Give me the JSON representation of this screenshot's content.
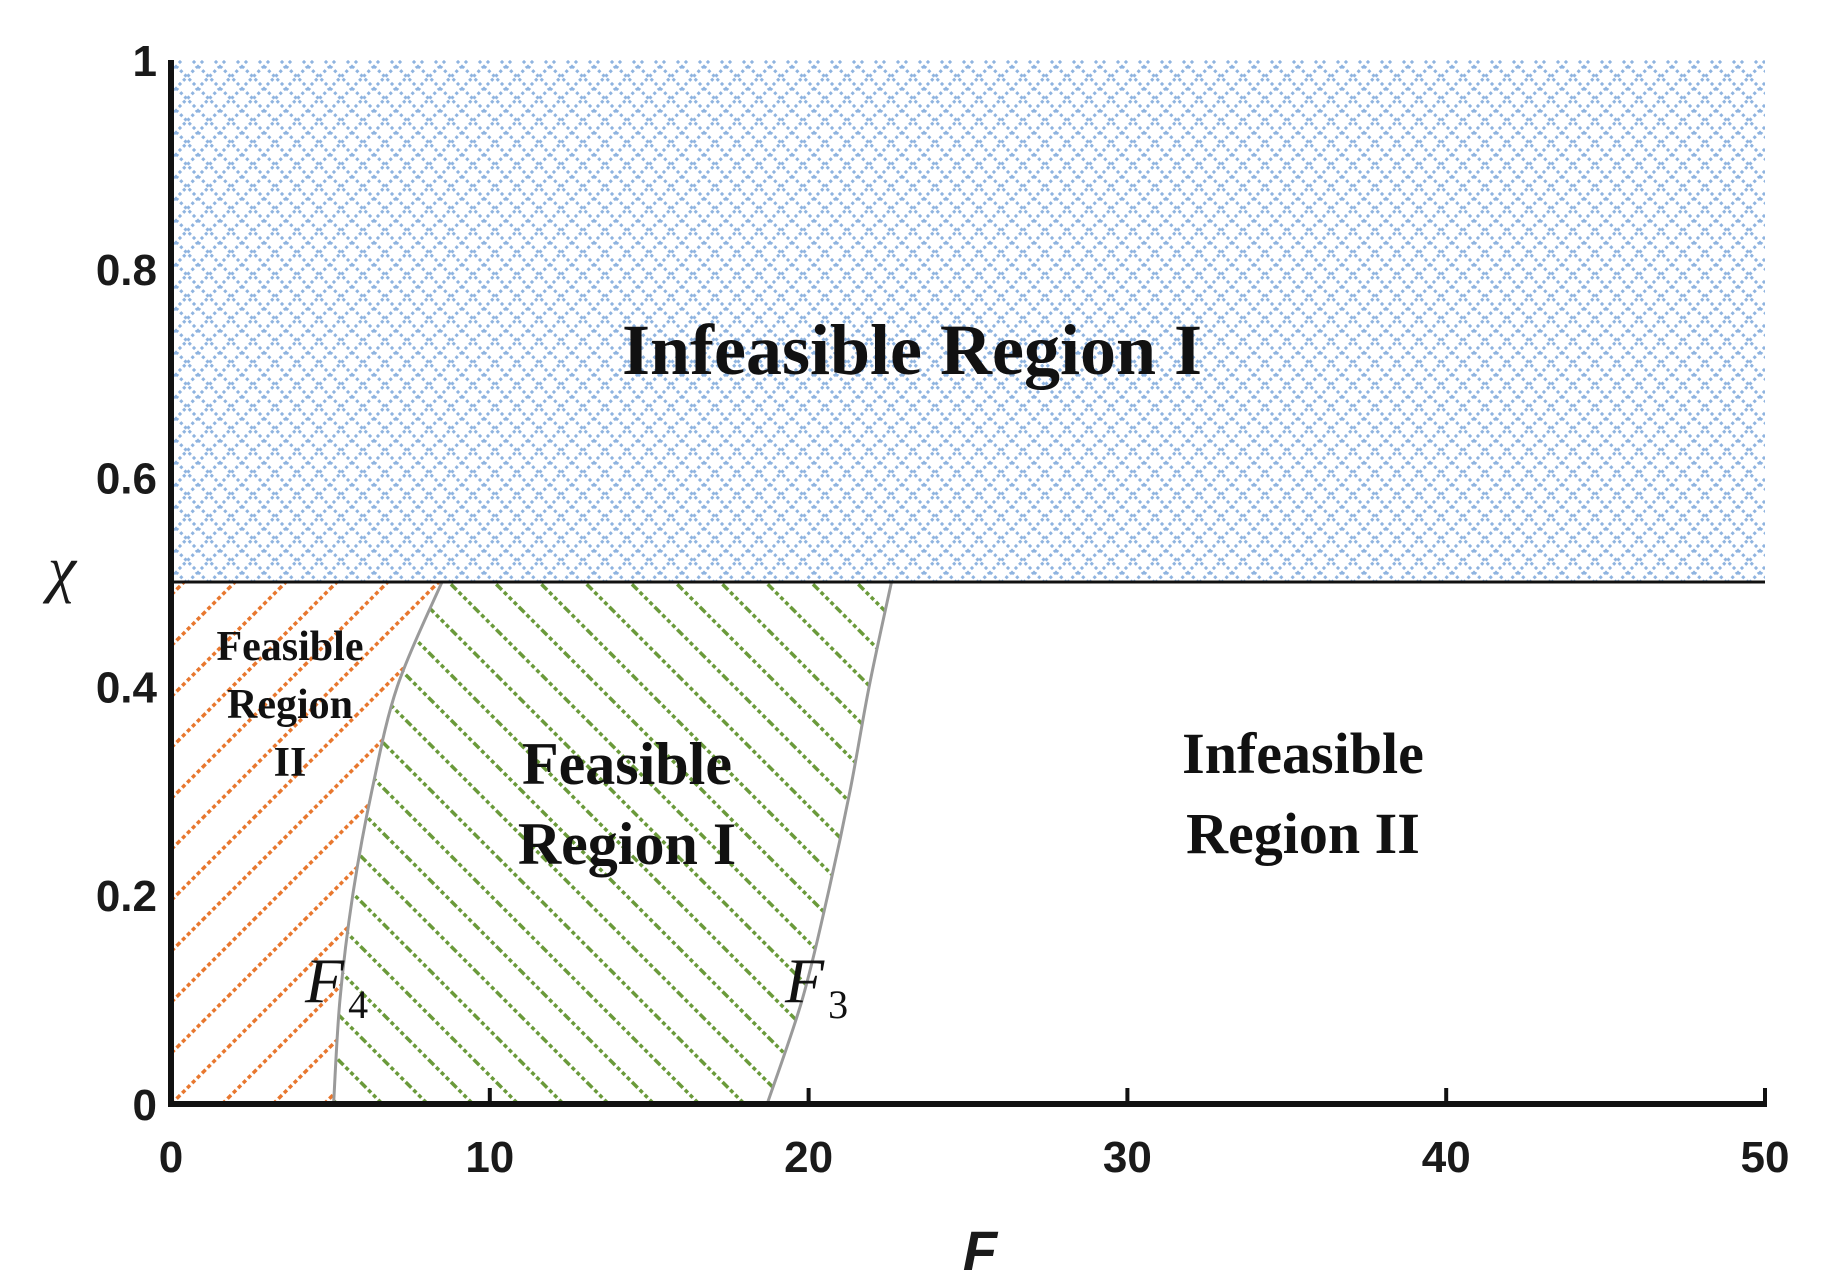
{
  "chart_data": {
    "type": "area",
    "xlabel": "F",
    "ylabel": "χ",
    "xlim": [
      0,
      50
    ],
    "ylim": [
      0,
      1
    ],
    "x_ticks": [
      0,
      10,
      20,
      30,
      40,
      50
    ],
    "y_ticks": [
      0,
      0.2,
      0.4,
      0.6,
      0.8,
      1
    ],
    "y_tick_labels": [
      "0",
      "0.2",
      "0.4",
      "0.6",
      "0.8",
      "1"
    ],
    "boundary_chi": 0.5,
    "curves": [
      {
        "name": "F4",
        "label_main": "F",
        "label_sub": "4",
        "points": [
          [
            5.1,
            0
          ],
          [
            5.3,
            0.1
          ],
          [
            5.7,
            0.2
          ],
          [
            6.3,
            0.3
          ],
          [
            7.1,
            0.4
          ],
          [
            8.5,
            0.5
          ]
        ]
      },
      {
        "name": "F3",
        "label_main": "F",
        "label_sub": "3",
        "points": [
          [
            18.7,
            0
          ],
          [
            19.8,
            0.1
          ],
          [
            20.6,
            0.2
          ],
          [
            21.3,
            0.3
          ],
          [
            21.9,
            0.4
          ],
          [
            22.6,
            0.5
          ]
        ]
      }
    ],
    "regions": [
      {
        "name": "Infeasible Region I",
        "lines": [
          "Infeasible Region I"
        ],
        "pattern": "crosshatch",
        "color": "#8fb4e0"
      },
      {
        "name": "Feasible Region II",
        "lines": [
          "Feasible",
          "Region",
          "II"
        ],
        "pattern": "diagonal-down",
        "color": "#e8772e"
      },
      {
        "name": "Feasible Region I",
        "lines": [
          "Feasible",
          "Region I"
        ],
        "pattern": "diagonal-up",
        "color": "#6a9a3a"
      },
      {
        "name": "Infeasible Region II",
        "lines": [
          "Infeasible",
          "Region II"
        ],
        "pattern": "none",
        "color": "#ffffff"
      }
    ]
  }
}
